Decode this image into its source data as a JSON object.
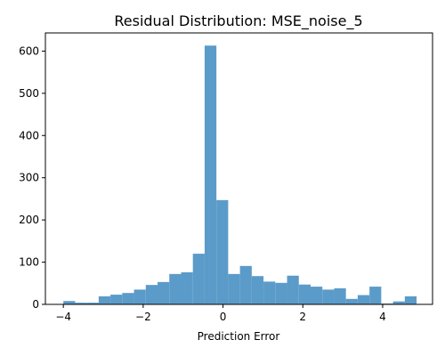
{
  "chart_data": {
    "type": "bar",
    "title": "Residual Distribution: MSE_noise_5",
    "xlabel": "Prediction Error",
    "ylabel": "",
    "color": "#5b9bc9",
    "bin_start": -4.0,
    "bin_width": 0.295,
    "counts": [
      8,
      4,
      4,
      19,
      23,
      27,
      35,
      46,
      53,
      72,
      76,
      120,
      613,
      247,
      72,
      91,
      67,
      54,
      51,
      68,
      47,
      42,
      35,
      38,
      13,
      22,
      42,
      2,
      7,
      19
    ],
    "xlim": [
      -4.45,
      5.25
    ],
    "ylim": [
      0,
      643
    ],
    "xticks": [
      -4,
      -2,
      0,
      2,
      4
    ],
    "xtick_labels": [
      "−4",
      "−2",
      "0",
      "2",
      "4"
    ],
    "yticks": [
      0,
      100,
      200,
      300,
      400,
      500,
      600
    ],
    "ytick_labels": [
      "0",
      "100",
      "200",
      "300",
      "400",
      "500",
      "600"
    ]
  }
}
